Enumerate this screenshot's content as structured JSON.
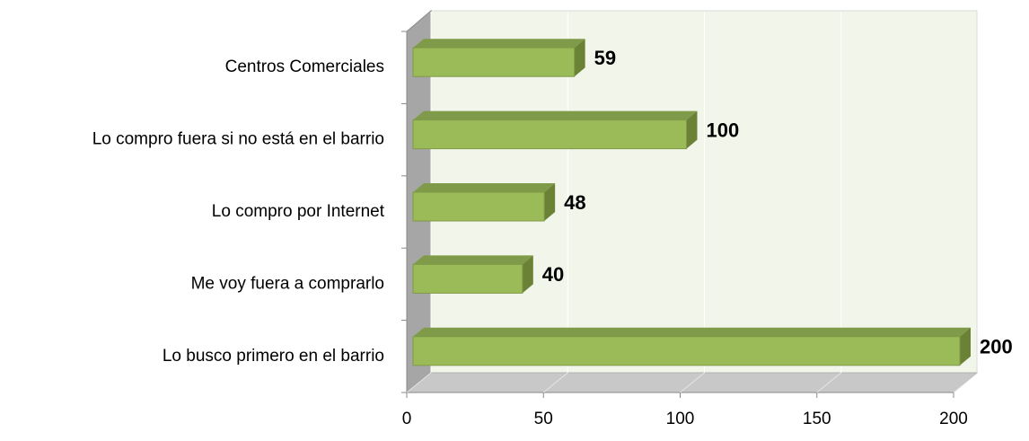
{
  "chart_data": {
    "type": "bar",
    "orientation": "horizontal",
    "categories": [
      "Centros Comerciales",
      "Lo compro fuera si no está en el barrio",
      "Lo compro por Internet",
      "Me voy fuera a comprarlo",
      "Lo busco primero en el barrio"
    ],
    "values": [
      59,
      100,
      48,
      40,
      200
    ],
    "color": "#9bbb59",
    "xlim": [
      0,
      200
    ],
    "xticks": [
      0,
      50,
      100,
      150,
      200
    ],
    "grid": true
  }
}
